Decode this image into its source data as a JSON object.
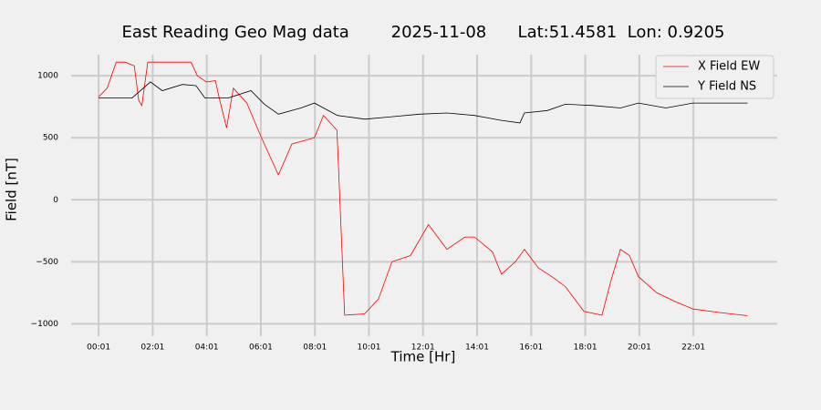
{
  "chart_data": {
    "type": "line",
    "title": "East Reading Geo Mag data        2025-11-08      Lat:51.4581  Lon: 0.9205",
    "xlabel": "Time  [Hr]",
    "ylabel": "Field  [nT]",
    "xlim": [
      -60,
      1507
    ],
    "ylim": [
      -1100,
      1170
    ],
    "xticks": [
      {
        "value": 1,
        "label": "00:01"
      },
      {
        "value": 121,
        "label": "02:01"
      },
      {
        "value": 241,
        "label": "04:01"
      },
      {
        "value": 361,
        "label": "06:01"
      },
      {
        "value": 481,
        "label": "08:01"
      },
      {
        "value": 601,
        "label": "10:01"
      },
      {
        "value": 721,
        "label": "12:01"
      },
      {
        "value": 841,
        "label": "14:01"
      },
      {
        "value": 961,
        "label": "16:01"
      },
      {
        "value": 1081,
        "label": "18:01"
      },
      {
        "value": 1201,
        "label": "20:01"
      },
      {
        "value": 1321,
        "label": "22:01"
      }
    ],
    "yticks": [
      {
        "value": -1000,
        "label": "−1000"
      },
      {
        "value": -500,
        "label": "−500"
      },
      0,
      500,
      1000
    ],
    "grid": true,
    "legend": "upper right",
    "series": [
      {
        "name": "X Field EW",
        "color": "#ff0000",
        "x": [
          1,
          20,
          40,
          60,
          80,
          90,
          97,
          110,
          150,
          206,
          220,
          240,
          260,
          270,
          285,
          300,
          330,
          360,
          400,
          430,
          480,
          500,
          530,
          547,
          591,
          622,
          652,
          693,
          733,
          774,
          814,
          835,
          875,
          895,
          926,
          946,
          977,
          1007,
          1037,
          1078,
          1118,
          1139,
          1159,
          1179,
          1199,
          1240,
          1280,
          1320,
          1381,
          1441
        ],
        "values": [
          830,
          900,
          1110,
          1110,
          1080,
          800,
          760,
          1110,
          1110,
          1110,
          1000,
          950,
          960,
          800,
          580,
          900,
          780,
          520,
          200,
          450,
          500,
          680,
          560,
          -930,
          -920,
          -800,
          -500,
          -450,
          -200,
          -400,
          -300,
          -300,
          -420,
          -600,
          -500,
          -400,
          -550,
          -620,
          -700,
          -900,
          -930,
          -640,
          -400,
          -450,
          -620,
          -750,
          -820,
          -880,
          -910,
          -935
        ]
      },
      {
        "name": "Y Field NS",
        "color": "#000000",
        "x": [
          1,
          45,
          75,
          116,
          142,
          187,
          217,
          237,
          288,
          339,
          369,
          400,
          450,
          480,
          531,
          592,
          652,
          713,
          774,
          835,
          895,
          936,
          946,
          997,
          1037,
          1098,
          1159,
          1199,
          1260,
          1320,
          1381,
          1441
        ],
        "values": [
          820,
          820,
          820,
          950,
          880,
          930,
          920,
          820,
          820,
          880,
          770,
          690,
          740,
          780,
          680,
          650,
          670,
          690,
          700,
          680,
          640,
          620,
          700,
          720,
          770,
          760,
          740,
          780,
          740,
          780,
          780,
          780
        ]
      }
    ]
  }
}
